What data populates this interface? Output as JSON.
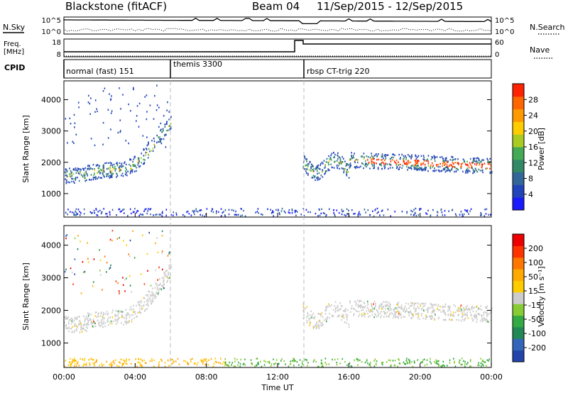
{
  "header": {
    "radar": "Blackstone  (fitACF)",
    "beam": "Beam 04",
    "dates": "11/Sep/2015 - 12/Sep/2015"
  },
  "side_labels": {
    "nsky": "N.Sky",
    "nsearch": "N.Search",
    "freq_line1": "Freq.",
    "freq_line2": "[MHz]",
    "nave": "Nave",
    "cpid": "CPID"
  },
  "noise_axis": {
    "left_top": "10^5",
    "left_bottom": "10^0",
    "right_top": "10^5",
    "right_bottom": "10^0"
  },
  "freq_axis": {
    "left_top": "18",
    "left_bottom": "8",
    "right_top": "60",
    "right_bottom": "0"
  },
  "cpid_segments": [
    {
      "label": "normal (fast) 151",
      "start_hour": 0
    },
    {
      "label": "themis 3300",
      "start_hour": 6
    },
    {
      "label": "rbsp CT-trig 220",
      "start_hour": 13.5
    }
  ],
  "chart_data": [
    {
      "type": "heatmap",
      "panel": "power",
      "ylabel": "Slant Range [km]",
      "xlabel": "",
      "xlim_hours": [
        0,
        24
      ],
      "ylim": [
        250,
        4600
      ],
      "yticks": [
        1000,
        2000,
        3000,
        4000
      ],
      "colorbar": {
        "label": "Power [dB]",
        "ticks": [
          "4",
          "8",
          "12",
          "16",
          "20",
          "24",
          "28"
        ],
        "colors": [
          "#1a1aff",
          "#2244bb",
          "#336699",
          "#338866",
          "#44aa55",
          "#aacc22",
          "#ffcc00",
          "#ff9900",
          "#ff6600",
          "#ff2200"
        ]
      }
    },
    {
      "type": "heatmap",
      "panel": "velocity",
      "ylabel": "Slant Range [km]",
      "xlabel": "Time UT",
      "xlim_hours": [
        0,
        24
      ],
      "ylim": [
        250,
        4600
      ],
      "yticks": [
        1000,
        2000,
        3000,
        4000
      ],
      "xticks": [
        "00:00",
        "04:00",
        "08:00",
        "12:00",
        "16:00",
        "20:00",
        "00:00"
      ],
      "colorbar": {
        "label": "Velocity [m s⁻¹]",
        "ticks": [
          "200",
          "100",
          "50",
          "15",
          "-15",
          "-50",
          "-100",
          "-200"
        ],
        "colors": [
          "#2244aa",
          "#3366bb",
          "#228855",
          "#33aa44",
          "#88cc33",
          "#cccccc",
          "#ffcc00",
          "#ffaa00",
          "#ff7700",
          "#ff3300",
          "#ee0000"
        ]
      }
    }
  ]
}
